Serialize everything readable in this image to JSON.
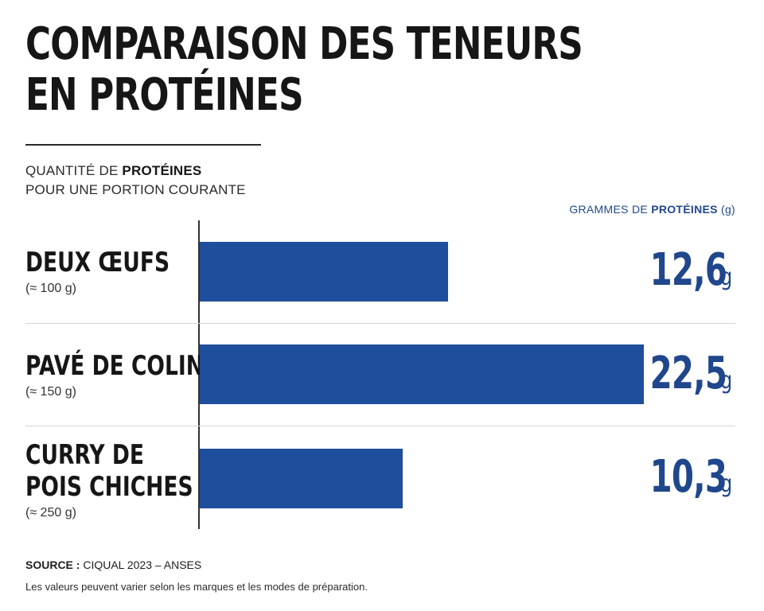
{
  "chart_data": {
    "type": "bar",
    "orientation": "horizontal",
    "title_lines": [
      "COMPARAISON DES TENEURS",
      "EN PROTÉINES"
    ],
    "subtitle": {
      "line1_prefix": "QUANTITÉ DE ",
      "line1_bold": "PROTÉINES",
      "line2": "POUR UNE PORTION COURANTE"
    },
    "value_axis_label": {
      "prefix": "GRAMMES DE ",
      "bold": "PROTÉINES",
      "suffix": " (g)"
    },
    "categories": [
      {
        "name_lines": [
          "DEUX ŒUFS"
        ],
        "portion": "(≈ 100 g)"
      },
      {
        "name_lines": [
          "PAVÉ DE COLIN"
        ],
        "portion": "(≈ 150 g)"
      },
      {
        "name_lines": [
          "CURRY DE",
          "POIS CHICHES"
        ],
        "portion": "(≈ 250 g)"
      }
    ],
    "values": [
      12.6,
      22.5,
      10.3
    ],
    "value_labels": [
      "12,6",
      "22,5",
      "10,3"
    ],
    "unit": "g",
    "xlim": [
      0,
      25
    ],
    "bar_color": "#1f4f9c",
    "value_color": "#20478c",
    "grid": false,
    "legend": "none"
  },
  "footer": {
    "source_label": "SOURCE :",
    "source_text": " CIQUAL 2023 – ANSES",
    "note": "Les valeurs peuvent varier selon les marques et les modes de préparation."
  }
}
